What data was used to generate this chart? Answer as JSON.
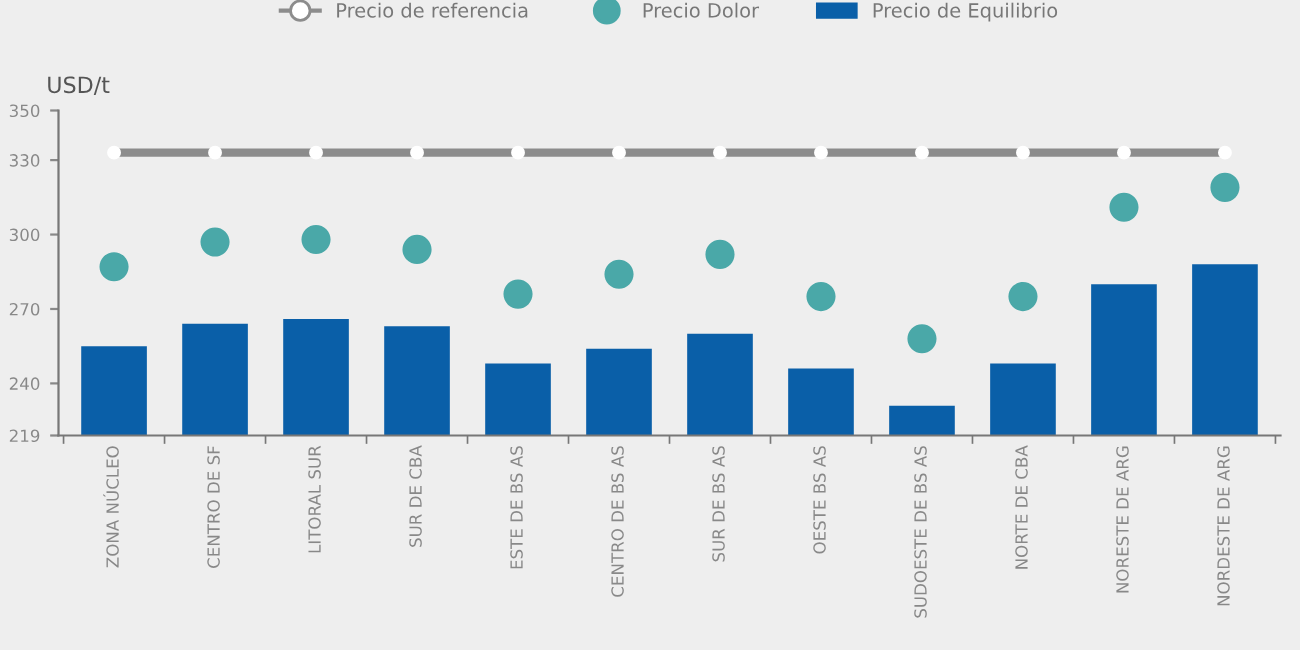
{
  "chart_data": {
    "type": "bar",
    "ylabel": "USD/t",
    "categories": [
      "ZONA NÚCLEO",
      "CENTRO DE SF",
      "LITORAL SUR",
      "SUR DE CBA",
      "ESTE DE BS AS",
      "CENTRO DE BS AS",
      "SUR DE BS AS",
      "OESTE BS AS",
      "SUDOESTE DE BS AS",
      "NORTE DE CBA",
      "NORESTE DE ARG",
      "NORDESTE DE ARG"
    ],
    "series": [
      {
        "name": "Precio de referencia",
        "type": "line",
        "color": "#8c8c8c",
        "marker": "circle",
        "values": [
          333,
          333,
          333,
          333,
          333,
          333,
          333,
          333,
          333,
          333,
          333,
          333
        ]
      },
      {
        "name": "Precio Dolor",
        "type": "scatter",
        "color": "#4aa8a8",
        "marker": "circle",
        "values": [
          287,
          297,
          298,
          294,
          276,
          284,
          292,
          275,
          258,
          275,
          311,
          319
        ]
      },
      {
        "name": "Precio de Equilibrio",
        "color": "#0a5fa8",
        "values": [
          255,
          264,
          266,
          263,
          248,
          254,
          260,
          246,
          231,
          248,
          280,
          288
        ]
      }
    ],
    "ylim": [
      219,
      350
    ],
    "yticks": [
      219,
      240,
      270,
      300,
      330,
      350
    ],
    "legend": "top",
    "grid": false
  }
}
